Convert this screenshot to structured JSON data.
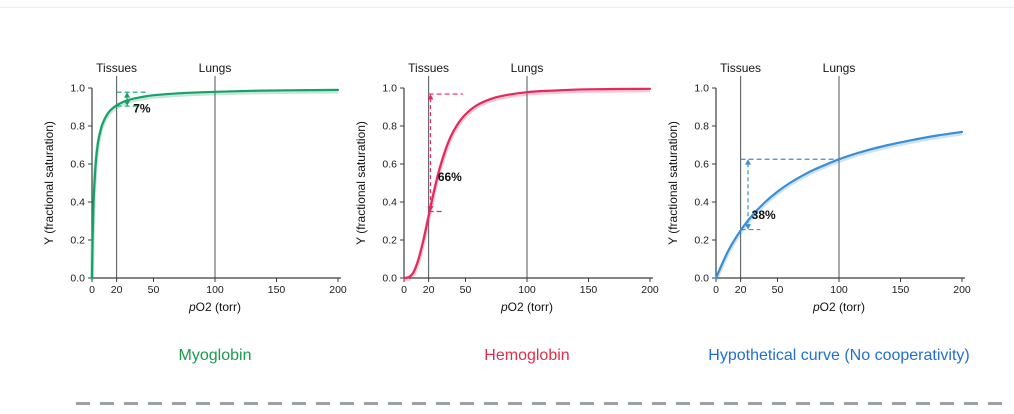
{
  "chart_data": [
    {
      "type": "line",
      "name": "myoglobin",
      "title": "Myoglobin",
      "color": "#18a06b",
      "title_color": "#1c9b4e",
      "xlabel": "pO2 (torr)",
      "ylabel": "Y (fractional saturation)",
      "xlim": [
        0,
        200
      ],
      "ylim": [
        0,
        1
      ],
      "xticks": [
        0,
        20,
        50,
        100,
        150,
        200
      ],
      "yticks": [
        0,
        0.2,
        0.4,
        0.6,
        0.8,
        1
      ],
      "grid": false,
      "markers": [
        {
          "label": "Tissues",
          "x": 20
        },
        {
          "label": "Lungs",
          "x": 100
        }
      ],
      "series": [
        {
          "name": "myoglobin O2 saturation",
          "points": [
            [
              0,
              0
            ],
            [
              0.5,
              0.2
            ],
            [
              1,
              0.333
            ],
            [
              1.5,
              0.429
            ],
            [
              2,
              0.5
            ],
            [
              3,
              0.6
            ],
            [
              4,
              0.667
            ],
            [
              5,
              0.714
            ],
            [
              6,
              0.75
            ],
            [
              8,
              0.8
            ],
            [
              10,
              0.833
            ],
            [
              13,
              0.867
            ],
            [
              16,
              0.889
            ],
            [
              20,
              0.909
            ],
            [
              25,
              0.926
            ],
            [
              30,
              0.938
            ],
            [
              40,
              0.952
            ],
            [
              50,
              0.962
            ],
            [
              70,
              0.972
            ],
            [
              100,
              0.98
            ],
            [
              130,
              0.985
            ],
            [
              160,
              0.988
            ],
            [
              200,
              0.99
            ]
          ]
        }
      ],
      "annotation": {
        "label": "7%",
        "arrow_x": 28.5,
        "y_low": 0.905,
        "y_high": 0.978,
        "top_dash": [
          20,
          46
        ],
        "bottom_dash": [
          20,
          37
        ],
        "label_pos": [
          33.5,
          0.872
        ]
      }
    },
    {
      "type": "line",
      "name": "hemoglobin",
      "title": "Hemoglobin",
      "color": "#e42a5c",
      "title_color": "#e02f48",
      "xlabel": "pO2 (torr)",
      "ylabel": "Y (fractional saturation)",
      "xlim": [
        0,
        200
      ],
      "ylim": [
        0,
        1
      ],
      "xticks": [
        0,
        20,
        50,
        100,
        150,
        200
      ],
      "yticks": [
        0,
        0.2,
        0.4,
        0.6,
        0.8,
        1
      ],
      "grid": false,
      "markers": [
        {
          "label": "Tissues",
          "x": 20
        },
        {
          "label": "Lungs",
          "x": 100
        }
      ],
      "series": [
        {
          "name": "hemoglobin O2 saturation",
          "points": [
            [
              0,
              0
            ],
            [
              4,
              0.005
            ],
            [
              8,
              0.033
            ],
            [
              12,
              0.103
            ],
            [
              16,
              0.205
            ],
            [
              20,
              0.325
            ],
            [
              24,
              0.445
            ],
            [
              28,
              0.552
            ],
            [
              32,
              0.64
            ],
            [
              36,
              0.714
            ],
            [
              40,
              0.77
            ],
            [
              46,
              0.832
            ],
            [
              52,
              0.874
            ],
            [
              60,
              0.912
            ],
            [
              70,
              0.941
            ],
            [
              80,
              0.959
            ],
            [
              100,
              0.978
            ],
            [
              120,
              0.986
            ],
            [
              150,
              0.993
            ],
            [
              200,
              0.996
            ]
          ]
        }
      ],
      "annotation": {
        "label": "66%",
        "arrow_x": 21.5,
        "y_low": 0.35,
        "y_high": 0.968,
        "top_dash": [
          20,
          48
        ],
        "bottom_dash": [
          20,
          33
        ],
        "label_pos": [
          27.5,
          0.51
        ]
      }
    },
    {
      "type": "line",
      "name": "hypothetical",
      "title": "Hypothetical curve (No cooperativity)",
      "color": "#3a8ed6",
      "title_color": "#2270cf",
      "xlabel": "pO2 (torr)",
      "ylabel": "Y (fractional saturation)",
      "xlim": [
        0,
        200
      ],
      "ylim": [
        0,
        1
      ],
      "xticks": [
        0,
        20,
        50,
        100,
        150,
        200
      ],
      "yticks": [
        0,
        0.2,
        0.4,
        0.6,
        0.8,
        1
      ],
      "grid": false,
      "markers": [
        {
          "label": "Tissues",
          "x": 20
        },
        {
          "label": "Lungs",
          "x": 100
        }
      ],
      "series": [
        {
          "name": "non-cooperative O2 saturation",
          "points": [
            [
              0,
              0
            ],
            [
              10,
              0.143
            ],
            [
              20,
              0.25
            ],
            [
              30,
              0.333
            ],
            [
              40,
              0.4
            ],
            [
              50,
              0.455
            ],
            [
              60,
              0.5
            ],
            [
              70,
              0.538
            ],
            [
              80,
              0.571
            ],
            [
              100,
              0.625
            ],
            [
              120,
              0.667
            ],
            [
              140,
              0.7
            ],
            [
              160,
              0.727
            ],
            [
              180,
              0.75
            ],
            [
              200,
              0.769
            ]
          ]
        }
      ],
      "annotation": {
        "label": "38%",
        "arrow_x": 26,
        "y_low": 0.255,
        "y_high": 0.625,
        "top_dash": [
          20,
          100
        ],
        "bottom_dash": [
          20,
          36
        ],
        "label_pos": [
          29,
          0.31
        ]
      }
    }
  ]
}
